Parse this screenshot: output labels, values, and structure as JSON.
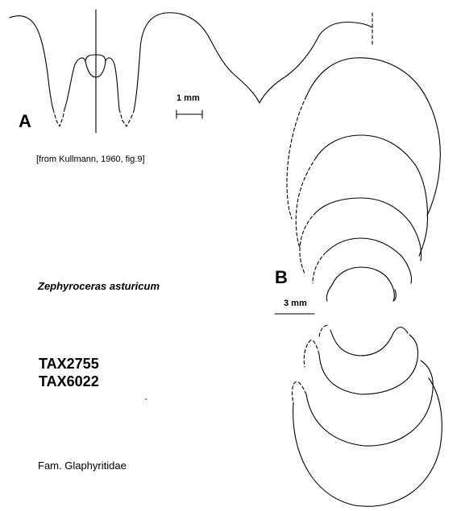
{
  "figure": {
    "panel_a_label": "A",
    "panel_b_label": "B",
    "scale_a": "1 mm",
    "scale_b": "3 mm",
    "source_note": "[from Kullmann, 1960, fig.9]",
    "species": "Zephyroceras asturicum",
    "tax_ids": [
      "TAX2755",
      "TAX6022"
    ],
    "family": "Fam. Glaphyritidae"
  }
}
